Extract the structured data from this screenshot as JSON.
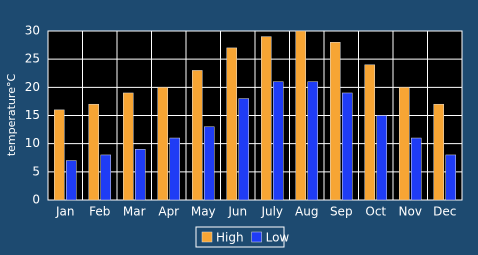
{
  "chart_data": {
    "type": "bar",
    "y_label": "temperature°C",
    "categories": [
      "Jan",
      "Feb",
      "Mar",
      "Apr",
      "May",
      "Jun",
      "July",
      "Aug",
      "Sep",
      "Oct",
      "Nov",
      "Dec"
    ],
    "series": [
      {
        "name": "High",
        "color": "#f7a534",
        "values": [
          16,
          17,
          19,
          20,
          23,
          27,
          29,
          30,
          28,
          24,
          20,
          17
        ]
      },
      {
        "name": "Low",
        "color": "#1f3cf5",
        "values": [
          7,
          8,
          9,
          11,
          13,
          18,
          21,
          21,
          19,
          15,
          11,
          8
        ]
      }
    ],
    "ylim": [
      0,
      30
    ],
    "yticks": [
      0,
      5,
      10,
      15,
      20,
      25,
      30
    ],
    "grid": true,
    "legend": "bottom"
  }
}
